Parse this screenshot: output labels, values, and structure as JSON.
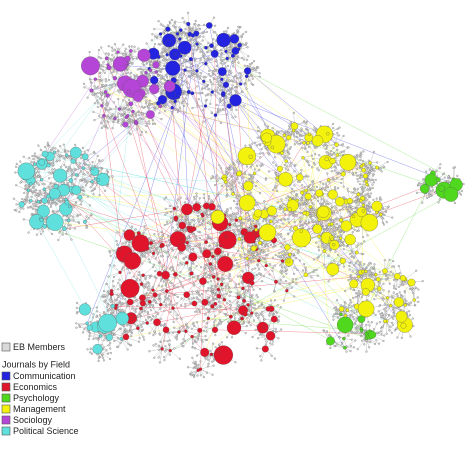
{
  "legend": {
    "members": {
      "label": "EB Members",
      "color": "#d9d9d9"
    },
    "title": "Journals by Field",
    "fields": [
      {
        "label": "Communication",
        "color": "#2323e0"
      },
      {
        "label": "Economics",
        "color": "#e0142a"
      },
      {
        "label": "Psychology",
        "color": "#4fd81e"
      },
      {
        "label": "Management",
        "color": "#f2f20c"
      },
      {
        "label": "Sociology",
        "color": "#b445d6"
      },
      {
        "label": "Political Science",
        "color": "#5fe0dc"
      }
    ]
  }
}
